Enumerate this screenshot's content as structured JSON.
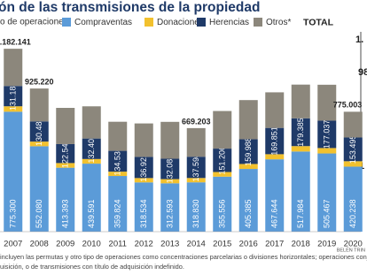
{
  "chart_data": {
    "type": "bar",
    "stacked": true,
    "title": "ón de las transmisiones de la propiedad",
    "subtitle": "o de operaciones",
    "categories": [
      "2007",
      "2008",
      "2009",
      "2010",
      "2011",
      "2012",
      "2013",
      "2014",
      "2015",
      "2016",
      "2017",
      "2018",
      "2019",
      "2020"
    ],
    "series": [
      {
        "name": "Compraventas",
        "color": "#5b9bd8",
        "values": [
          775300,
          552080,
          413393,
          439591,
          359824,
          318534,
          312593,
          318830,
          355556,
          405385,
          467644,
          517984,
          505467,
          420238
        ],
        "value_labels": [
          "775.300",
          "552.080",
          "413.393",
          "439.591",
          "359.824",
          "318.534",
          "312.593",
          "318.830",
          "355.556",
          "405.385",
          "467.644",
          "517.984",
          "505.467",
          "420.238"
        ]
      },
      {
        "name": "Donaciones",
        "color": "#f2c12e",
        "values": [
          35000,
          30000,
          30000,
          30000,
          28000,
          28000,
          27000,
          28000,
          30000,
          32000,
          33000,
          35000,
          35000,
          35000
        ]
      },
      {
        "name": "Herencias",
        "color": "#1f3a68",
        "values": [
          131187,
          130481,
          122546,
          132407,
          134536,
          136922,
          132080,
          137594,
          151206,
          159988,
          169851,
          179385,
          177037,
          153495
        ],
        "value_labels": [
          "131.187",
          "130.481",
          "122.546",
          "132.407",
          "134.536",
          "136.922",
          "132.080",
          "137.594",
          "151.206",
          "159.988",
          "169.851",
          "179.385",
          "177.037",
          "153.495"
        ]
      },
      {
        "name": "Otros*",
        "color": "#8c877c",
        "values": [
          240654,
          212659,
          234000,
          208000,
          188000,
          216000,
          238000,
          184779,
          243000,
          253000,
          230000,
          218000,
          232000,
          166270
        ]
      }
    ],
    "totals": {
      "name": "TOTAL",
      "values": [
        1182141,
        925220,
        null,
        null,
        null,
        null,
        null,
        669203,
        null,
        null,
        null,
        null,
        null,
        775003
      ],
      "value_labels": [
        "1.182.141",
        "925.220",
        null,
        null,
        null,
        null,
        null,
        "669.203",
        null,
        null,
        null,
        null,
        null,
        "775.003"
      ]
    },
    "ylim": [
      0,
      1200000
    ],
    "footnote": [
      "incluyen las permutas y otro tipo de operaciones como concentraciones parcelarias o divisiones horizontales; operaciones conjuntas, r",
      "uisición, o de transmisiones con título de adquisición indefinido."
    ],
    "credit": "BELÉN TRIN",
    "fragments": [
      "1.",
      "98",
      "1"
    ]
  }
}
